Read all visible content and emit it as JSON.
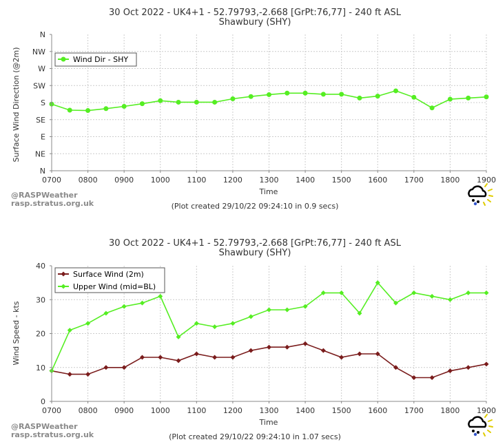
{
  "credit": {
    "line1": "@RASPWeather",
    "line2": "rasp.stratus.org.uk"
  },
  "colors": {
    "green": "#55ee22",
    "maroon": "#7a1c1c",
    "text": "#333333",
    "grid": "#cccccc",
    "credit": "#8a8a8a"
  },
  "icons": {
    "logo": "cloud-rain-sun-icon"
  },
  "chart_data": [
    {
      "type": "line",
      "title": "30 Oct 2022 - UK4+1 - 52.79793,-2.668 [GrPt:76,77]  - 240 ft ASL",
      "subtitle": "Shawbury (SHY)",
      "xlabel": "Time",
      "ylabel": "Surface Wind Direction (@2m)",
      "footnote": "(Plot created 29/10/22 09:24:10 in 0.9 secs)",
      "x": [
        "0700",
        "0730",
        "0800",
        "0830",
        "0900",
        "0930",
        "1000",
        "1030",
        "1100",
        "1130",
        "1200",
        "1230",
        "1300",
        "1330",
        "1400",
        "1430",
        "1500",
        "1530",
        "1600",
        "1630",
        "1700",
        "1730",
        "1800",
        "1830",
        "1900"
      ],
      "x_tick_labels": [
        "0700",
        "0800",
        "0900",
        "1000",
        "1100",
        "1200",
        "1300",
        "1400",
        "1500",
        "1600",
        "1700",
        "1800",
        "1900"
      ],
      "y_tick_labels": [
        "N",
        "NW",
        "W",
        "SW",
        "S",
        "SE",
        "E",
        "NE",
        "N"
      ],
      "y_tick_values": [
        360,
        315,
        270,
        225,
        180,
        135,
        90,
        45,
        0
      ],
      "ylim": [
        0,
        360
      ],
      "legend_position": "top-left",
      "series": [
        {
          "name": "Wind Dir - SHY",
          "color": "#55ee22",
          "values": [
            176,
            160,
            159,
            164,
            170,
            177,
            185,
            181,
            181,
            181,
            190,
            196,
            201,
            205,
            205,
            202,
            202,
            192,
            197,
            211,
            194,
            166,
            189,
            192,
            195
          ]
        }
      ]
    },
    {
      "type": "line",
      "title": "30 Oct 2022 - UK4+1 - 52.79793,-2.668 [GrPt:76,77]  - 240 ft ASL",
      "subtitle": "Shawbury (SHY)",
      "xlabel": "Time",
      "ylabel": "Wind Speed - kts",
      "footnote": "(Plot created 29/10/22 09:24:10 in 1.07 secs)",
      "x": [
        "0700",
        "0730",
        "0800",
        "0830",
        "0900",
        "0930",
        "1000",
        "1030",
        "1100",
        "1130",
        "1200",
        "1230",
        "1300",
        "1330",
        "1400",
        "1430",
        "1500",
        "1530",
        "1600",
        "1630",
        "1700",
        "1730",
        "1800",
        "1830",
        "1900"
      ],
      "x_tick_labels": [
        "0700",
        "0800",
        "0900",
        "1000",
        "1100",
        "1200",
        "1300",
        "1400",
        "1500",
        "1600",
        "1700",
        "1800",
        "1900"
      ],
      "y_tick_labels": [
        "0",
        "10",
        "20",
        "30",
        "40"
      ],
      "y_tick_values": [
        0,
        10,
        20,
        30,
        40
      ],
      "ylim": [
        0,
        40
      ],
      "legend_position": "top-left",
      "series": [
        {
          "name": "Surface Wind (2m)",
          "color": "#7a1c1c",
          "values": [
            9,
            8,
            8,
            10,
            10,
            13,
            13,
            12,
            14,
            13,
            13,
            15,
            16,
            16,
            17,
            15,
            13,
            14,
            14,
            10,
            7,
            7,
            9,
            10,
            11
          ]
        },
        {
          "name": "Upper Wind (mid=BL)",
          "color": "#55ee22",
          "values": [
            9,
            21,
            23,
            26,
            28,
            29,
            31,
            19,
            23,
            22,
            23,
            25,
            27,
            27,
            28,
            32,
            32,
            26,
            35,
            29,
            32,
            31,
            30,
            32,
            32
          ]
        }
      ]
    }
  ]
}
